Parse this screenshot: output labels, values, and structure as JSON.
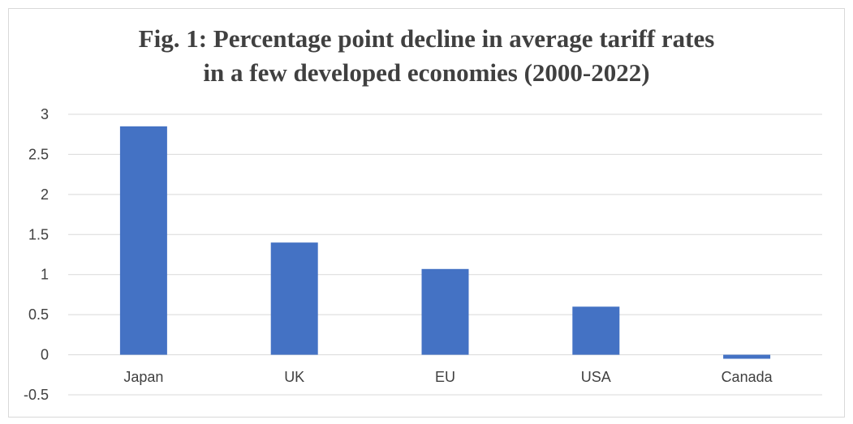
{
  "chart_data": {
    "type": "bar",
    "title_lines": [
      "Fig. 1: Percentage point decline in average tariff rates",
      "in a few developed economies (2000-2022)"
    ],
    "categories": [
      "Japan",
      "UK",
      "EU",
      "USA",
      "Canada"
    ],
    "values": [
      2.85,
      1.4,
      1.07,
      0.6,
      -0.05
    ],
    "ylim": [
      -0.5,
      3
    ],
    "yticks": [
      3,
      2.5,
      2,
      1.5,
      1,
      0.5,
      0,
      -0.5
    ],
    "ytick_labels": [
      "3",
      "2.5",
      "2",
      "1.5",
      "1",
      "0.5",
      "0",
      "-0.5"
    ],
    "grid": true,
    "bar_color": "#4472c4",
    "grid_color": "#d9d9d9"
  }
}
